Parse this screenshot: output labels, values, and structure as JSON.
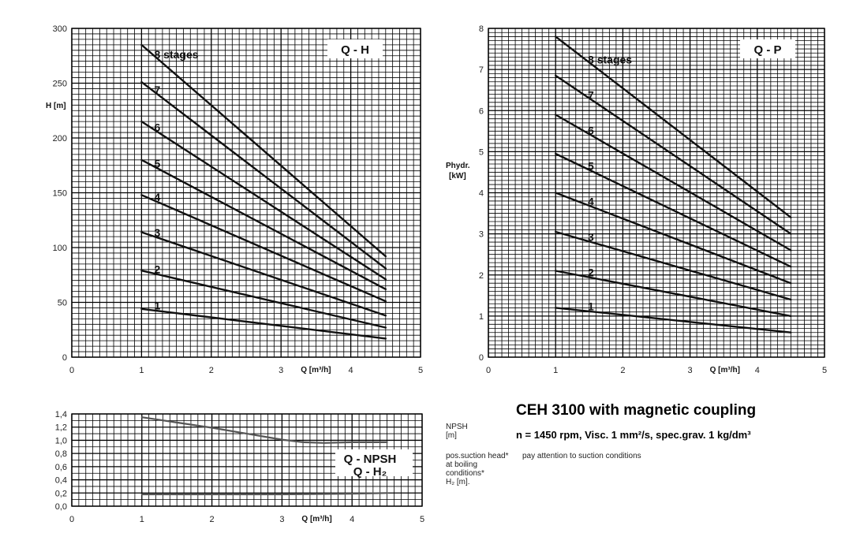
{
  "title": "CEH 3100 with magnetic coupling",
  "subtitle": "n = 1450 rpm, Visc.  1 mm²/s, spec.grav.  1 kg/dm³",
  "npsh_label": [
    "NPSH",
    "[m]"
  ],
  "pos_note": [
    "pos.suction head*",
    "at boiling",
    "conditions*",
    "H₂ [m]."
  ],
  "pay_note": "pay attention to suction conditions",
  "colors": {
    "grid": "#000000",
    "curve": "#111111",
    "npsh_curve": "#555555"
  },
  "chart_data": [
    {
      "name": "qh",
      "type": "line",
      "box_label": "Q - H",
      "xlabel": "Q [m³/h]",
      "ylabel": "H [m]",
      "xlim": [
        0,
        5
      ],
      "ylim": [
        0,
        300
      ],
      "xticks": [
        0,
        1,
        2,
        3,
        4,
        5
      ],
      "yticks": [
        0,
        50,
        100,
        150,
        200,
        250,
        300
      ],
      "tick_labels_y": [
        "0",
        "50",
        "100",
        "150",
        "200",
        "250",
        "300"
      ],
      "grid": true,
      "label_x": 1.25,
      "series": [
        {
          "name": "1",
          "x": [
            1.0,
            4.5
          ],
          "y": [
            44,
            17
          ]
        },
        {
          "name": "2",
          "x": [
            1.0,
            4.5
          ],
          "y": [
            79,
            27
          ]
        },
        {
          "name": "3",
          "x": [
            1.0,
            4.5
          ],
          "y": [
            114,
            38
          ]
        },
        {
          "name": "4",
          "x": [
            1.0,
            4.5
          ],
          "y": [
            148,
            51
          ]
        },
        {
          "name": "5",
          "x": [
            1.0,
            4.5
          ],
          "y": [
            180,
            62
          ]
        },
        {
          "name": "6",
          "x": [
            1.0,
            4.5
          ],
          "y": [
            215,
            71
          ]
        },
        {
          "name": "7",
          "x": [
            1.0,
            4.5
          ],
          "y": [
            251,
            81
          ]
        },
        {
          "name": "8 stages",
          "x": [
            1.0,
            4.5
          ],
          "y": [
            285,
            92
          ]
        }
      ]
    },
    {
      "name": "qp",
      "type": "line",
      "box_label": "Q - P",
      "xlabel": "Q [m³/h]",
      "ylabel": [
        "Phydr.",
        "[kW]"
      ],
      "xlim": [
        0,
        5
      ],
      "ylim": [
        0,
        8
      ],
      "xticks": [
        0,
        1,
        2,
        3,
        4,
        5
      ],
      "yticks": [
        0,
        1,
        2,
        3,
        4,
        5,
        6,
        7,
        8
      ],
      "tick_labels_y": [
        "0",
        "1",
        "2",
        "3",
        "4",
        "5",
        "6",
        "7",
        "8"
      ],
      "grid": true,
      "label_x": 1.55,
      "series": [
        {
          "name": "1",
          "x": [
            1.0,
            4.5
          ],
          "y": [
            1.2,
            0.6
          ]
        },
        {
          "name": "2",
          "x": [
            1.0,
            4.5
          ],
          "y": [
            2.1,
            1.0
          ]
        },
        {
          "name": "3",
          "x": [
            1.0,
            4.5
          ],
          "y": [
            3.05,
            1.4
          ]
        },
        {
          "name": "4",
          "x": [
            1.0,
            4.5
          ],
          "y": [
            4.0,
            1.8
          ]
        },
        {
          "name": "5",
          "x": [
            1.0,
            4.5
          ],
          "y": [
            4.95,
            2.2
          ]
        },
        {
          "name": "6",
          "x": [
            1.0,
            4.5
          ],
          "y": [
            5.9,
            2.6
          ]
        },
        {
          "name": "7",
          "x": [
            1.0,
            4.5
          ],
          "y": [
            6.85,
            3.0
          ]
        },
        {
          "name": "8 stages",
          "x": [
            1.0,
            4.5
          ],
          "y": [
            7.8,
            3.4
          ]
        }
      ]
    },
    {
      "name": "npsh",
      "type": "line",
      "box_label": [
        "Q - NPSH",
        "Q - H₂"
      ],
      "xlabel": "Q [m³/h]",
      "xlim": [
        0,
        5
      ],
      "ylim": [
        0,
        1.4
      ],
      "xticks": [
        0,
        1,
        2,
        3,
        4,
        5
      ],
      "yticks": [
        0,
        0.2,
        0.4,
        0.6,
        0.8,
        1.0,
        1.2,
        1.4
      ],
      "tick_labels_y": [
        "0,0",
        "0,2",
        "0,4",
        "0,6",
        "0,8",
        "1,0",
        "1,2",
        "1,4"
      ],
      "grid": true,
      "series": [
        {
          "x": [
            1.0,
            1.5,
            2.0,
            2.5,
            3.0,
            3.3,
            3.6,
            4.0,
            4.5
          ],
          "y": [
            1.35,
            1.27,
            1.19,
            1.1,
            1.01,
            0.97,
            0.96,
            0.97,
            0.97
          ]
        },
        {
          "x": [
            1.0,
            2.0,
            3.0,
            4.0,
            4.5
          ],
          "y": [
            0.18,
            0.18,
            0.18,
            0.19,
            0.2
          ]
        }
      ]
    }
  ]
}
